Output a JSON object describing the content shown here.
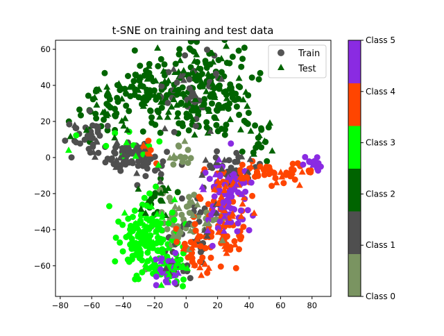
{
  "chart_data": {
    "type": "scatter",
    "title": "t-SNE on training and test data",
    "xlabel": "",
    "ylabel": "",
    "xlim": [
      -83,
      92
    ],
    "ylim": [
      -77,
      65
    ],
    "xticks": [
      -80,
      -60,
      -40,
      -20,
      0,
      20,
      40,
      60,
      80
    ],
    "yticks": [
      -60,
      -40,
      -20,
      0,
      20,
      40,
      60
    ],
    "legend": {
      "placement": "top-right",
      "entries": [
        {
          "label": "Train",
          "marker": "circle",
          "color": "#555555"
        },
        {
          "label": "Test",
          "marker": "triangle",
          "color": "#006400"
        }
      ]
    },
    "colorbar": {
      "labels": [
        "Class 0",
        "Class 1",
        "Class 2",
        "Class 3",
        "Class 4",
        "Class 5"
      ],
      "colors": [
        "#7a9461",
        "#4f4f4f",
        "#006400",
        "#00ff00",
        "#ff4500",
        "#8a2be2"
      ]
    },
    "clusters": [
      {
        "class": 2,
        "cx": 15,
        "cy": 35,
        "sx": 16,
        "sy": 13,
        "n_train": 150,
        "n_test": 50
      },
      {
        "class": 2,
        "cx": -25,
        "cy": 38,
        "sx": 12,
        "sy": 10,
        "n_train": 60,
        "n_test": 30
      },
      {
        "class": 2,
        "cx": -52,
        "cy": 25,
        "sx": 10,
        "sy": 9,
        "n_train": 30,
        "n_test": 15
      },
      {
        "class": 2,
        "cx": 45,
        "cy": 12,
        "sx": 5,
        "sy": 6,
        "n_train": 15,
        "n_test": 8
      },
      {
        "class": 2,
        "cx": -18,
        "cy": -25,
        "sx": 6,
        "sy": 5,
        "n_train": 15,
        "n_test": 8
      },
      {
        "class": 1,
        "cx": -32,
        "cy": 0,
        "sx": 10,
        "sy": 5,
        "n_train": 70,
        "n_test": 15
      },
      {
        "class": 1,
        "cx": -63,
        "cy": 12,
        "sx": 6,
        "sy": 5,
        "n_train": 30,
        "n_test": 8
      },
      {
        "class": 1,
        "cx": 5,
        "cy": 35,
        "sx": 10,
        "sy": 10,
        "n_train": 30,
        "n_test": 8
      },
      {
        "class": 1,
        "cx": 28,
        "cy": -5,
        "sx": 9,
        "sy": 5,
        "n_train": 30,
        "n_test": 10
      },
      {
        "class": 1,
        "cx": 5,
        "cy": -40,
        "sx": 8,
        "sy": 10,
        "n_train": 25,
        "n_test": 8
      },
      {
        "class": 1,
        "cx": -5,
        "cy": -62,
        "sx": 6,
        "sy": 5,
        "n_train": 15,
        "n_test": 5
      },
      {
        "class": 0,
        "cx": -5,
        "cy": -35,
        "sx": 10,
        "sy": 8,
        "n_train": 35,
        "n_test": 12
      },
      {
        "class": 0,
        "cx": -5,
        "cy": 0,
        "sx": 4,
        "sy": 4,
        "n_train": 10,
        "n_test": 3
      },
      {
        "class": 0,
        "cx": 15,
        "cy": -35,
        "sx": 6,
        "sy": 6,
        "n_train": 10,
        "n_test": 4
      },
      {
        "class": 3,
        "cx": -25,
        "cy": -45,
        "sx": 9,
        "sy": 10,
        "n_train": 120,
        "n_test": 30
      },
      {
        "class": 3,
        "cx": -10,
        "cy": -60,
        "sx": 6,
        "sy": 5,
        "n_train": 40,
        "n_test": 10
      },
      {
        "class": 3,
        "cx": -45,
        "cy": 8,
        "sx": 15,
        "sy": 6,
        "n_train": 10,
        "n_test": 4
      },
      {
        "class": 4,
        "cx": 25,
        "cy": -35,
        "sx": 8,
        "sy": 12,
        "n_train": 70,
        "n_test": 25
      },
      {
        "class": 4,
        "cx": 55,
        "cy": -8,
        "sx": 15,
        "sy": 3,
        "n_train": 50,
        "n_test": 15
      },
      {
        "class": 4,
        "cx": 5,
        "cy": -50,
        "sx": 5,
        "sy": 6,
        "n_train": 20,
        "n_test": 8
      },
      {
        "class": 4,
        "cx": -25,
        "cy": 3,
        "sx": 4,
        "sy": 3,
        "n_train": 5,
        "n_test": 3
      },
      {
        "class": 5,
        "cx": 25,
        "cy": -25,
        "sx": 8,
        "sy": 12,
        "n_train": 60,
        "n_test": 15
      },
      {
        "class": 5,
        "cx": 80,
        "cy": -3,
        "sx": 3,
        "sy": 3,
        "n_train": 12,
        "n_test": 2
      },
      {
        "class": 5,
        "cx": -10,
        "cy": -62,
        "sx": 5,
        "sy": 5,
        "n_train": 15,
        "n_test": 5
      }
    ]
  }
}
